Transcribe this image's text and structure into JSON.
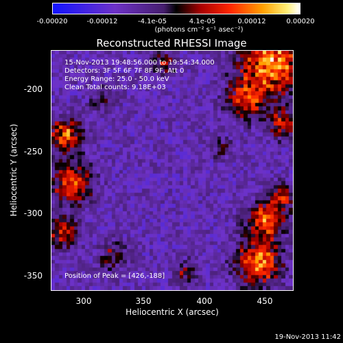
{
  "colorbar": {
    "tick_labels": [
      "-0.00020",
      "-0.00012",
      "-4.1e-05",
      "4.1e-05",
      "0.00012",
      "0.00020"
    ],
    "units_label": "(photons cm⁻² s⁻¹ asec⁻²)",
    "range": [
      -0.0002,
      0.0002
    ]
  },
  "plot": {
    "title": "Reconstructed RHESSI Image",
    "xlabel": "Heliocentric X (arcsec)",
    "ylabel": "Heliocentric Y (arcsec)",
    "x_ticks": [
      "300",
      "350",
      "400",
      "450"
    ],
    "y_ticks": [
      "-200",
      "-250",
      "-300",
      "-350"
    ],
    "xlim": [
      273,
      467
    ],
    "ylim": [
      -365,
      -172
    ]
  },
  "annotations": {
    "time_range": "15-Nov-2013 19:48:56.000 to 19:54:34.000",
    "detectors": "Detectors: 3F 5F 6F 7F 8F 9F, Att 0",
    "energy": "Energy Range: 25.0 - 50.0 keV",
    "method": "Clean    Total counts: 9.18E+03",
    "peak": "Position of Peak = [426,-188]"
  },
  "footer": {
    "date": "19-Nov-2013 11:42"
  }
}
